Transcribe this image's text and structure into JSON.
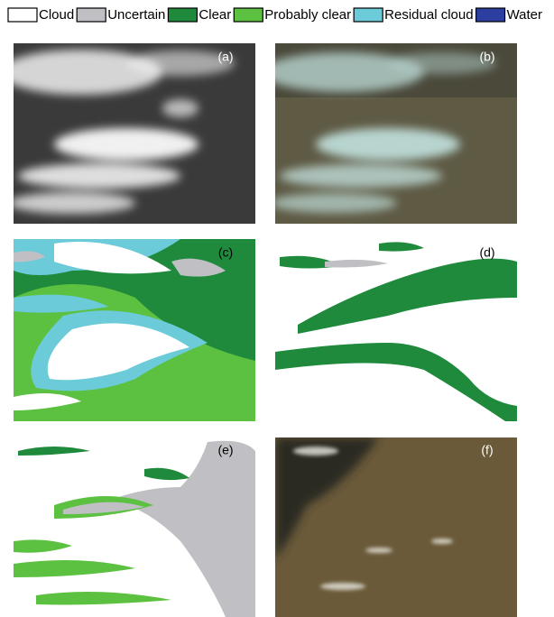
{
  "legend": {
    "items": [
      {
        "label": "Cloud",
        "color": "#ffffff"
      },
      {
        "label": "Uncertain",
        "color": "#c0c0c4"
      },
      {
        "label": "Clear",
        "color": "#1f8a3c"
      },
      {
        "label": "Probably clear",
        "color": "#5cc040"
      },
      {
        "label": "Residual cloud",
        "color": "#6ccbd8"
      },
      {
        "label": "Water",
        "color": "#2c3fa0"
      }
    ]
  },
  "panels": [
    {
      "label": "(a)"
    },
    {
      "label": "(b)"
    },
    {
      "label": "(c)"
    },
    {
      "label": "(d)"
    },
    {
      "label": "(e)"
    },
    {
      "label": "(f)"
    }
  ]
}
